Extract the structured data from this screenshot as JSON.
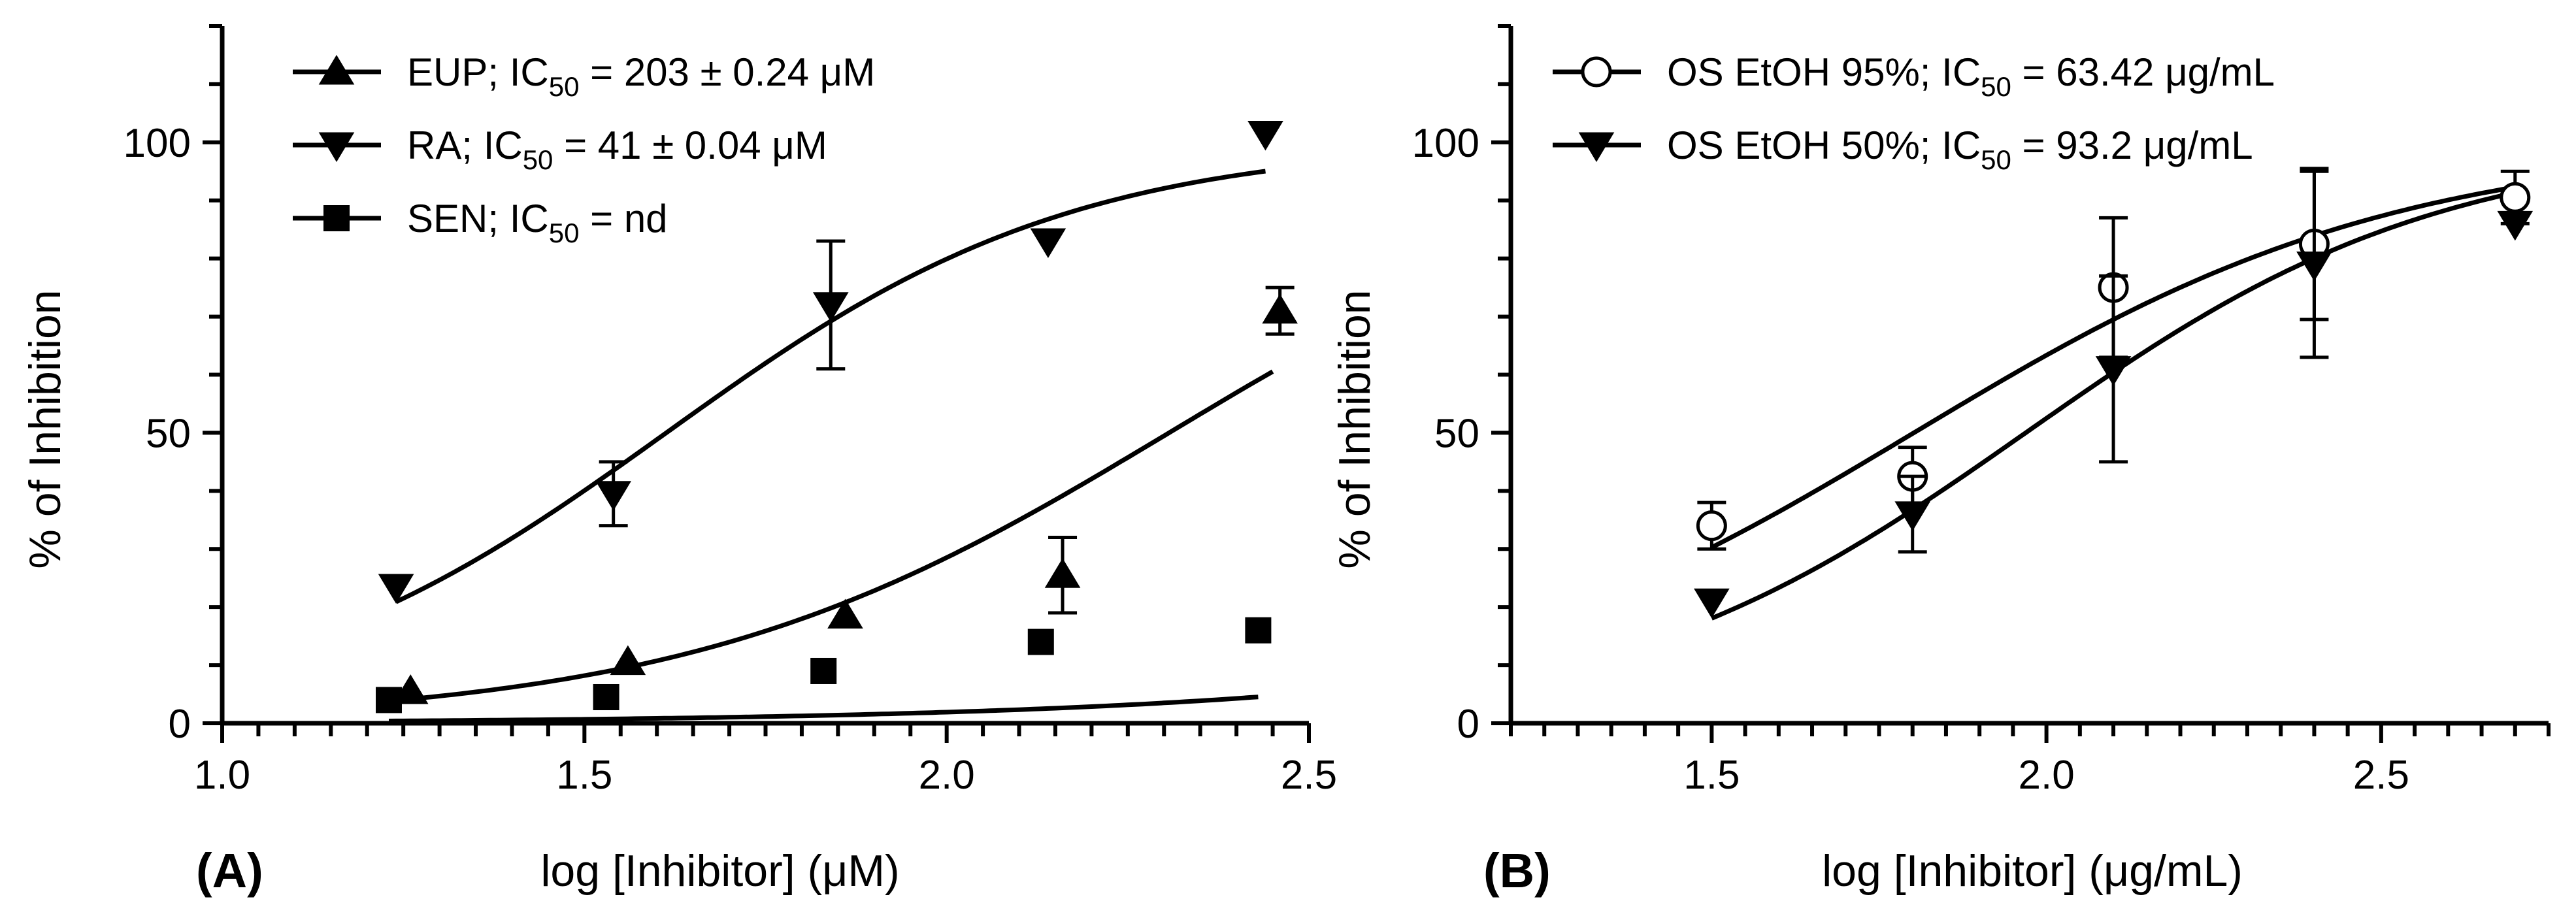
{
  "chart_data": [
    {
      "panel_label": "(A)",
      "type": "scatter",
      "xlabel": "log [Inhibitor] (μM)",
      "ylabel": "% of Inhibition",
      "xlim": [
        1.0,
        2.5
      ],
      "ylim": [
        0,
        120
      ],
      "x_ticks": [
        "1.0",
        "1.5",
        "2.0",
        "2.5"
      ],
      "y_ticks": [
        "0",
        "50",
        "100"
      ],
      "legend_position": "top-left",
      "series": [
        {
          "name": "EUP",
          "legend": {
            "pre": "EUP; IC",
            "sub": "50",
            "post": " = 203 ± 0.24 μM"
          },
          "marker": "triangle-up",
          "x": [
            1.26,
            1.56,
            1.86,
            2.16,
            2.46
          ],
          "y": [
            5.5,
            10.5,
            18.5,
            25.5,
            71
          ],
          "err": [
            null,
            null,
            null,
            6.5,
            4
          ],
          "fit": {
            "bottom": 0,
            "top": 100,
            "logIC50": 2.307,
            "hill": 1.3,
            "x_range": [
              1.25,
              2.45
            ]
          }
        },
        {
          "name": "RA",
          "legend": {
            "pre": "RA; IC",
            "sub": "50",
            "post": " = 41 ± 0.04 μM"
          },
          "marker": "triangle-down",
          "x": [
            1.24,
            1.54,
            1.84,
            2.14,
            2.44
          ],
          "y": [
            23.5,
            39.5,
            72,
            83,
            101.5
          ],
          "err": [
            null,
            5.5,
            11,
            null,
            null
          ],
          "fit": {
            "bottom": 0,
            "top": 100,
            "logIC50": 1.613,
            "hill": 1.55,
            "x_range": [
              1.24,
              2.44
            ]
          }
        },
        {
          "name": "SEN",
          "legend": {
            "pre": "SEN; IC",
            "sub": "50",
            "post": " = nd"
          },
          "marker": "square",
          "x": [
            1.23,
            1.53,
            1.83,
            2.13,
            2.43
          ],
          "y": [
            4,
            4.5,
            9,
            14,
            16
          ],
          "err": [
            null,
            null,
            null,
            null,
            null
          ],
          "fit": {
            "bottom": 0,
            "top": 100,
            "logIC50": 3.9,
            "hill": 0.9,
            "x_range": [
              1.23,
              2.43
            ]
          }
        }
      ]
    },
    {
      "panel_label": "(B)",
      "type": "scatter",
      "xlabel": "log [Inhibitor] (μg/mL)",
      "ylabel": "% of Inhibition",
      "xlim": [
        1.2,
        2.75
      ],
      "ylim": [
        0,
        120
      ],
      "x_ticks": [
        "1.5",
        "2.0",
        "2.5"
      ],
      "y_ticks": [
        "0",
        "50",
        "100"
      ],
      "legend_position": "top-left",
      "series": [
        {
          "name": "OS EtOH 95%",
          "legend": {
            "pre": "OS EtOH 95%; IC",
            "sub": "50",
            "post": " = 63.42 μg/mL"
          },
          "marker": "circle-open",
          "x": [
            1.5,
            1.8,
            2.1,
            2.4,
            2.7
          ],
          "y": [
            34,
            42.5,
            75,
            82.5,
            90.5
          ],
          "err": [
            4,
            5,
            12,
            13,
            4.5
          ],
          "fit": {
            "bottom": 0,
            "top": 100,
            "logIC50": 1.802,
            "hill": 1.2,
            "x_range": [
              1.5,
              2.7
            ]
          }
        },
        {
          "name": "OS EtOH 50%",
          "legend": {
            "pre": "OS EtOH 50%; IC",
            "sub": "50",
            "post": " = 93.2 μg/mL"
          },
          "marker": "triangle-down",
          "x": [
            1.5,
            1.8,
            2.1,
            2.4,
            2.7
          ],
          "y": [
            21,
            36,
            61,
            79,
            86
          ],
          "err": [
            null,
            6.5,
            16,
            16,
            null
          ],
          "fit": {
            "bottom": 0,
            "top": 100,
            "logIC50": 1.969,
            "hill": 1.4,
            "x_range": [
              1.5,
              2.7
            ]
          }
        }
      ]
    }
  ]
}
